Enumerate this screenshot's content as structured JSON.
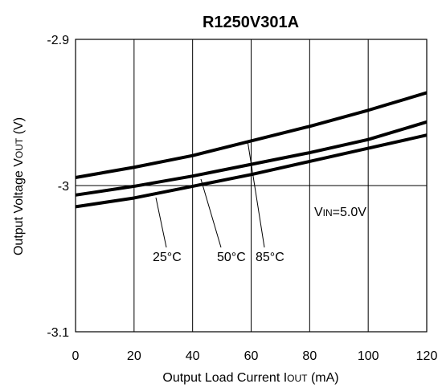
{
  "chart_data": {
    "type": "line",
    "title": "R1250V301A",
    "xlabel": {
      "main": "Output Load Current I",
      "sub": "OUT",
      "tail": " (mA)"
    },
    "ylabel": {
      "main": "Output Voltage V",
      "sub": "OUT",
      "tail": " (V)"
    },
    "xlim": [
      0,
      120
    ],
    "ylim": [
      -3.1,
      -2.9
    ],
    "xticks": [
      0,
      20,
      40,
      60,
      80,
      100,
      120
    ],
    "xtick_labels": [
      "0",
      "20",
      "40",
      "60",
      "80",
      "100",
      "120"
    ],
    "yticks": [
      -2.9,
      -3.0,
      -3.1
    ],
    "ytick_labels": [
      "-2.9",
      "-3",
      "-3.1"
    ],
    "grid": true,
    "series": [
      {
        "name": "25°C",
        "x": [
          0,
          20,
          40,
          60,
          80,
          100,
          120
        ],
        "y": [
          -3.0145,
          -3.0085,
          -3.0005,
          -2.9925,
          -2.9835,
          -2.9745,
          -2.9655
        ]
      },
      {
        "name": "50°C",
        "x": [
          0,
          20,
          40,
          60,
          80,
          100,
          120
        ],
        "y": [
          -3.0065,
          -3.0005,
          -2.9935,
          -2.9855,
          -2.9775,
          -2.9685,
          -2.9565
        ]
      },
      {
        "name": "85°C",
        "x": [
          0,
          20,
          40,
          60,
          80,
          100,
          120
        ],
        "y": [
          -2.9945,
          -2.9875,
          -2.9795,
          -2.9695,
          -2.9595,
          -2.9485,
          -2.9365
        ]
      }
    ],
    "annotations": [
      {
        "text_main": "V",
        "text_sub": "IN",
        "text_tail": "=5.0V"
      }
    ],
    "labels": [
      {
        "series": "25°C",
        "text": "25°C"
      },
      {
        "series": "50°C",
        "text": "50°C"
      },
      {
        "series": "85°C",
        "text": "85°C"
      }
    ]
  }
}
